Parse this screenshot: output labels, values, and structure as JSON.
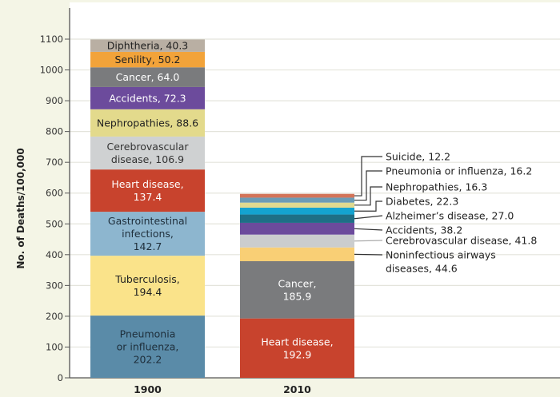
{
  "chart_data": {
    "type": "bar",
    "stacked": true,
    "title": "",
    "xlabel": "",
    "ylabel": "No. of Deaths/100,000",
    "ylim": [
      0,
      1100
    ],
    "yticks": [
      0,
      100,
      200,
      300,
      400,
      500,
      600,
      700,
      800,
      900,
      1000,
      1100
    ],
    "grid": true,
    "categories": [
      "1900",
      "2010"
    ],
    "bars": [
      {
        "category": "1900",
        "segments": [
          {
            "name": "Pneumonia or influenza",
            "value": 202.2,
            "label": [
              "Pneumonia",
              "or influenza,",
              "202.2"
            ],
            "color": "#5a8ba8",
            "text_color": "#1e2e3a"
          },
          {
            "name": "Tuberculosis",
            "value": 194.4,
            "label": [
              "Tuberculosis,",
              "194.4"
            ],
            "color": "#fae38a",
            "text_color": "#222222"
          },
          {
            "name": "Gastrointestinal infections",
            "value": 142.7,
            "label": [
              "Gastrointestinal",
              "infections,",
              "142.7"
            ],
            "color": "#8db6cf",
            "text_color": "#1e2e3a"
          },
          {
            "name": "Heart disease",
            "value": 137.4,
            "label": [
              "Heart disease,",
              "137.4"
            ],
            "color": "#c8432d",
            "text_color": "#ffffff"
          },
          {
            "name": "Cerebrovascular disease",
            "value": 106.9,
            "label": [
              "Cerebrovascular",
              "disease, 106.9"
            ],
            "color": "#cfd1d2",
            "text_color": "#333333"
          },
          {
            "name": "Nephropathies",
            "value": 88.6,
            "label": [
              "Nephropathies, 88.6"
            ],
            "color": "#e3da8c",
            "text_color": "#222222"
          },
          {
            "name": "Accidents",
            "value": 72.3,
            "label": [
              "Accidents, 72.3"
            ],
            "color": "#6c4b9c",
            "text_color": "#ffffff"
          },
          {
            "name": "Cancer",
            "value": 64.0,
            "label": [
              "Cancer, 64.0"
            ],
            "color": "#7a7b7d",
            "text_color": "#ffffff"
          },
          {
            "name": "Senility",
            "value": 50.2,
            "label": [
              "Senility, 50.2"
            ],
            "color": "#f2a33a",
            "text_color": "#222222"
          },
          {
            "name": "Diphtheria",
            "value": 40.3,
            "label": [
              "Diphtheria, 40.3"
            ],
            "color": "#b9afa3",
            "text_color": "#222222"
          }
        ]
      },
      {
        "category": "2010",
        "segments": [
          {
            "name": "Heart disease",
            "value": 192.9,
            "label": [
              "Heart disease,",
              "192.9"
            ],
            "color": "#c8432d",
            "text_color": "#ffffff",
            "inside": true
          },
          {
            "name": "Cancer",
            "value": 185.9,
            "label": [
              "Cancer,",
              "185.9"
            ],
            "color": "#7a7b7d",
            "text_color": "#ffffff",
            "inside": true
          },
          {
            "name": "Noninfectious airways diseases",
            "value": 44.6,
            "label": [
              "Noninfectious airways",
              "diseases, 44.6"
            ],
            "color": "#f9cf75",
            "line_color": "#333333"
          },
          {
            "name": "Cerebrovascular disease",
            "value": 41.8,
            "label": [
              "Cerebrovascular disease, 41.8"
            ],
            "color": "#cbcdce",
            "line_color": "#aaaaaa"
          },
          {
            "name": "Accidents",
            "value": 38.2,
            "label": [
              "Accidents, 38.2"
            ],
            "color": "#6c4b9c",
            "line_color": "#333333"
          },
          {
            "name": "Alzheimer's disease",
            "value": 27.0,
            "label": [
              "Alzheimer’s disease, 27.0"
            ],
            "color": "#1e6f86",
            "line_color": "#333333"
          },
          {
            "name": "Diabetes",
            "value": 22.3,
            "label": [
              "Diabetes, 22.3"
            ],
            "color": "#14a3d0",
            "line_color": "#333333"
          },
          {
            "name": "Nephropathies",
            "value": 16.3,
            "label": [
              "Nephropathies, 16.3"
            ],
            "color": "#dfda90",
            "line_color": "#333333"
          },
          {
            "name": "Pneumonia or influenza",
            "value": 16.2,
            "label": [
              "Pneumonia or influenza, 16.2"
            ],
            "color": "#6b9cb6",
            "line_color": "#333333"
          },
          {
            "name": "Suicide",
            "value": 12.2,
            "label": [
              "Suicide, 12.2"
            ],
            "color": "#d37459",
            "line_color": "#333333"
          }
        ]
      }
    ]
  }
}
